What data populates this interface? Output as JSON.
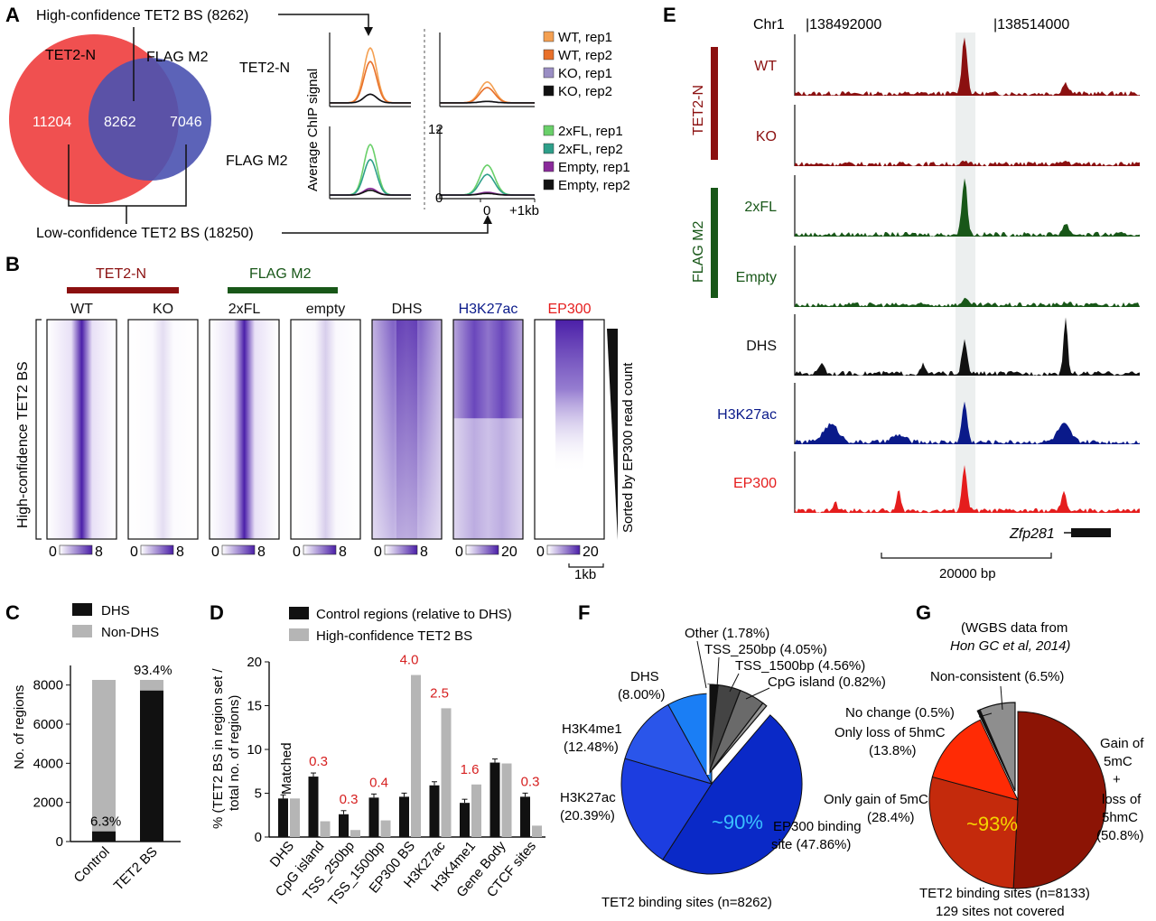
{
  "colors": {
    "tet2": "#8b1010",
    "flag": "#185718",
    "dhs": "#111111",
    "h3k27ac": "#0a1a8a",
    "ep300": "#e51d1d",
    "venn_left": "#f05050",
    "venn_right": "#4a52b0",
    "heat": "#4b1fa8",
    "wt1": "#f4a052",
    "wt2": "#e8702a",
    "ko1": "#9a8ec4",
    "ko2": "#111111",
    "fl1": "#6ad06a",
    "fl2": "#2e9f8a",
    "em1": "#8a2a9a",
    "em2": "#111111",
    "bar_dark": "#111111",
    "bar_light": "#b5b5b5",
    "pie_blue": [
      "#0a29c7",
      "#1c3de0",
      "#2a55ea",
      "#1a7ef5"
    ],
    "pie_gray": [
      "#111111",
      "#444444",
      "#6a6a6a",
      "#999999"
    ],
    "pie_red": [
      "#8c1405",
      "#c42a0c",
      "#ff2b05"
    ],
    "red_label": "#d62020",
    "yellow_label": "#f5d400",
    "cyan_label": "#3ac0ff"
  },
  "panels": {
    "A": "A",
    "B": "B",
    "C": "C",
    "D": "D",
    "E": "E",
    "F": "F",
    "G": "G"
  },
  "panel_a": {
    "high_conf_label": "High-confidence TET2 BS (8262)",
    "low_conf_label": "Low-confidence TET2 BS (18250)",
    "venn_left_title": "TET2-N",
    "venn_right_title": "FLAG M2",
    "venn_left_count": "11204",
    "venn_mid_count": "8262",
    "venn_right_count": "7046",
    "row1_label": "TET2-N",
    "row2_label": "FLAG M2",
    "y_axis_label": "Average ChIP signal",
    "tick_12": "12",
    "tick_0": "0",
    "x_tick_0": "0",
    "x_tick_1kb": "+1kb",
    "legend_top": [
      {
        "label": "WT, rep1",
        "color": "#f4a052"
      },
      {
        "label": "WT, rep2",
        "color": "#e8702a"
      },
      {
        "label": "KO, rep1",
        "color": "#9a8ec4"
      },
      {
        "label": "KO, rep2",
        "color": "#111111"
      }
    ],
    "legend_bottom": [
      {
        "label": "2xFL, rep1",
        "color": "#6ad06a"
      },
      {
        "label": "2xFL, rep2",
        "color": "#2e9f8a"
      },
      {
        "label": "Empty, rep1",
        "color": "#8a2a9a"
      },
      {
        "label": "Empty, rep2",
        "color": "#111111"
      }
    ]
  },
  "panel_b": {
    "group1": "TET2-N",
    "group2": "FLAG M2",
    "columns": [
      {
        "label": "WT",
        "color": "#111111",
        "scale_max": "8",
        "strength": 1.0
      },
      {
        "label": "KO",
        "color": "#111111",
        "scale_max": "8",
        "strength": 0.15
      },
      {
        "label": "2xFL",
        "color": "#111111",
        "scale_max": "8",
        "strength": 1.0
      },
      {
        "label": "empty",
        "color": "#111111",
        "scale_max": "8",
        "strength": 0.22
      },
      {
        "label": "DHS",
        "color": "#111111",
        "scale_max": "8",
        "strength": 0.9
      },
      {
        "label": "H3K27ac",
        "color": "#0a1a8a",
        "scale_max": "20",
        "strength": 0.7
      },
      {
        "label": "EP300",
        "color": "#e51d1d",
        "scale_max": "20",
        "strength": 0.8
      }
    ],
    "scale_min": "0",
    "y_label": "High-confidence TET2 BS",
    "sort_label": "Sorted by EP300 read count",
    "kb_label": "1kb"
  },
  "panel_c": {
    "legend": [
      {
        "label": "DHS",
        "color": "#111111"
      },
      {
        "label": "Non-DHS",
        "color": "#b5b5b5"
      }
    ],
    "y_label": "No. of regions",
    "y_ticks": [
      "0",
      "2000",
      "4000",
      "6000",
      "8000"
    ],
    "pct_control": "6.3%",
    "pct_tet2": "93.4%"
  },
  "panel_d": {
    "legend": [
      {
        "label": "Control regions (relative to DHS)",
        "color": "#111111"
      },
      {
        "label": "High-confidence TET2 BS",
        "color": "#b5b5b5"
      }
    ],
    "y_label_1": "% (TET2 BS in region set /",
    "y_label_2": "total no. of regions)",
    "y_ticks": [
      "0",
      "5",
      "10",
      "15",
      "20"
    ],
    "matched_label": "Matched"
  },
  "panel_e": {
    "chrom": "Chr1",
    "coord1": "|138492000",
    "coord2": "|138514000",
    "group_tet2": "TET2-N",
    "group_flag": "FLAG M2",
    "tracks": [
      {
        "label": "WT",
        "color": "#8b1010",
        "peak": 1.0
      },
      {
        "label": "KO",
        "color": "#8b1010",
        "peak": 0.03
      },
      {
        "label": "2xFL",
        "color": "#185718",
        "peak": 1.0
      },
      {
        "label": "Empty",
        "color": "#185718",
        "peak": 0.12
      },
      {
        "label": "DHS",
        "color": "#111111",
        "peak": 0.55
      },
      {
        "label": "H3K27ac",
        "color": "#0a1a8a",
        "peak": 0.7
      },
      {
        "label": "EP300",
        "color": "#e51d1d",
        "peak": 0.75
      }
    ],
    "gene": "Zfp281",
    "scale_label": "20000 bp"
  },
  "panel_f": {
    "title": "TET2 binding sites (n=8262)",
    "center_label": "~90%",
    "labels": {
      "other": "Other (1.78%)",
      "tss250": "TSS_250bp (4.05%)",
      "tss1500": "TSS_1500bp (4.56%)",
      "cpg": "CpG island (0.82%)",
      "dhs_1": "DHS",
      "dhs_2": "(8.00%)",
      "h3k4_1": "H3K4me1",
      "h3k4_2": "(12.48%)",
      "h3k27_1": "H3K27ac",
      "h3k27_2": "(20.39%)",
      "ep300_1": "EP300 binding",
      "ep300_2": "site (47.86%)"
    }
  },
  "panel_g": {
    "note_1": "(WGBS data from",
    "note_2": "Hon GC et al, 2014)",
    "title_1": "TET2 binding sites (n=8133)",
    "title_2": "129 sites not covered",
    "center_label": "~93%",
    "labels": {
      "noncons": "Non-consistent (6.5%)",
      "nochange": "No change (0.5%)",
      "loss_1": "Only loss of 5hmC",
      "loss_2": "(13.8%)",
      "gain_1": "Only gain of 5mC",
      "gain_2": "(28.4%)",
      "both_1": "Gain of",
      "both_2": "5mC",
      "both_3": "+",
      "both_4": "loss of",
      "both_5": "5hmC",
      "both_6": "(50.8%)"
    }
  },
  "chart_data": [
    {
      "type": "line",
      "title": "",
      "ylabel": "Average ChIP signal",
      "xlabel": "",
      "x_ticks": [
        "0",
        "+1kb"
      ],
      "ylim": [
        0,
        12
      ],
      "series": [
        {
          "name": "WT, rep1",
          "peak": 9.5
        },
        {
          "name": "WT, rep2",
          "peak": 7.3
        },
        {
          "name": "KO, rep1",
          "peak": 2.0
        },
        {
          "name": "KO, rep2",
          "peak": 2.0
        },
        {
          "name": "2xFL, rep1",
          "peak": 9.0
        },
        {
          "name": "2xFL, rep2",
          "peak": 6.5
        },
        {
          "name": "Empty, rep1",
          "peak": 1.7
        },
        {
          "name": "Empty, rep2",
          "peak": 1.4
        }
      ]
    },
    {
      "type": "bar",
      "title": "",
      "categories": [
        "Control",
        "TET2 BS"
      ],
      "ylabel": "No. of regions",
      "ylim": [
        0,
        9000
      ],
      "series": [
        {
          "name": "DHS",
          "values": [
            520,
            7720
          ]
        },
        {
          "name": "Non-DHS",
          "values": [
            7742,
            542
          ]
        }
      ],
      "annotations": [
        "6.3%",
        "93.4%"
      ]
    },
    {
      "type": "bar",
      "title": "",
      "categories": [
        "DHS",
        "CpG island",
        "TSS_250bp",
        "TSS_1500bp",
        "EP300 BS",
        "H3K27ac",
        "H3K4me1",
        "Gene Body",
        "CTCF sites"
      ],
      "ylabel": "% (TET2 BS in region set / total no. of regions)",
      "ylim": [
        0,
        20
      ],
      "series": [
        {
          "name": "Control regions (relative to DHS)",
          "values": [
            4.4,
            6.9,
            2.6,
            4.5,
            4.6,
            5.9,
            3.9,
            8.5,
            4.6
          ]
        },
        {
          "name": "High-confidence TET2 BS",
          "values": [
            4.4,
            1.8,
            0.8,
            1.9,
            18.5,
            14.7,
            6.0,
            8.4,
            1.3
          ]
        }
      ],
      "ratios": [
        "",
        "0.3",
        "0.3",
        "0.4",
        "4.0",
        "2.5",
        "1.6",
        "",
        "0.3"
      ]
    },
    {
      "type": "pie",
      "title": "TET2 binding sites (n=8262)",
      "labels": [
        "EP300 binding site",
        "H3K27ac",
        "H3K4me1",
        "DHS",
        "Other",
        "TSS_250bp",
        "TSS_1500bp",
        "CpG island"
      ],
      "values": [
        47.86,
        20.39,
        12.48,
        8.0,
        1.78,
        4.05,
        4.56,
        0.82
      ]
    },
    {
      "type": "pie",
      "title": "TET2 binding sites (n=8133)",
      "labels": [
        "Gain of 5mC + loss of 5hmC",
        "Only gain of 5mC",
        "Only loss of 5hmC",
        "No change",
        "Non-consistent"
      ],
      "values": [
        50.8,
        28.4,
        13.8,
        0.5,
        6.5
      ]
    }
  ]
}
